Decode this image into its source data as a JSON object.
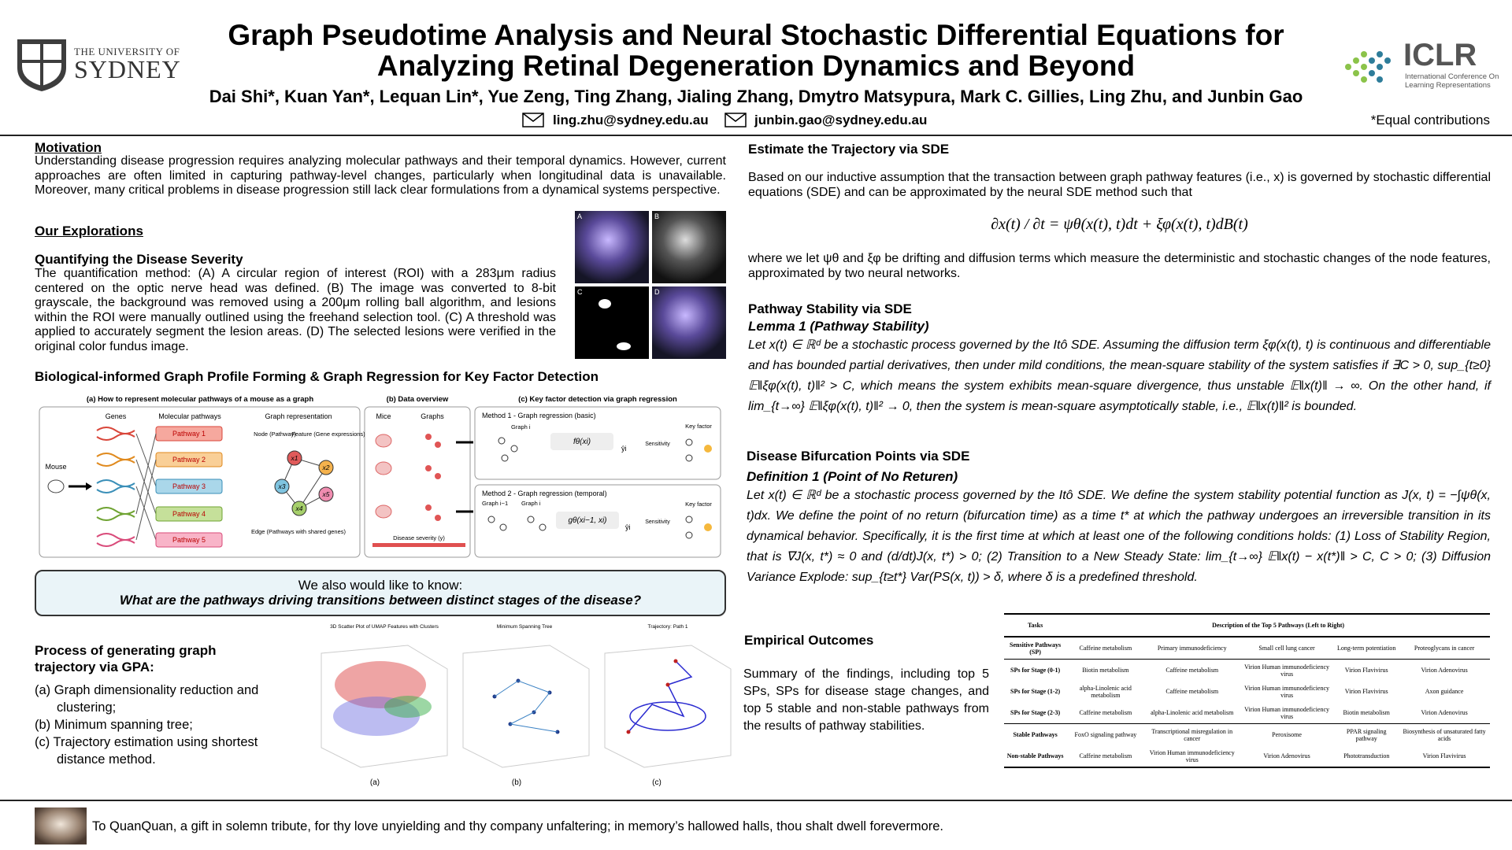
{
  "header": {
    "title_line1": "Graph Pseudotime Analysis and Neural Stochastic Differential Equations for",
    "title_line2": "Analyzing Retinal Degeneration Dynamics and Beyond",
    "authors": "Dai Shi*, Kuan Yan*, Lequan Lin*, Yue Zeng, Ting Zhang, Jialing Zhang, Dmytro Matsypura, Mark C. Gillies, Ling Zhu, and Junbin Gao",
    "emails": [
      "ling.zhu@sydney.edu.au",
      "junbin.gao@sydney.edu.au"
    ],
    "note": "*Equal contributions",
    "university_logo": [
      "THE UNIVERSITY OF",
      "SYDNEY"
    ],
    "conference_logo": {
      "name": "ICLR",
      "subtitle": [
        "International Conference On",
        "Learning Representations"
      ]
    }
  },
  "left": {
    "motivation_heading": "Motivation",
    "motivation_text": "Understanding disease progression requires analyzing molecular pathways and their temporal dynamics. However, current approaches are often limited in capturing pathway-level changes, particularly when longitudinal data is unavailable. Moreover, many critical problems in disease progression still lack clear formulations from a dynamical systems perspective.",
    "explorations_heading": "Our Explorations",
    "severity_heading": "Quantifying the Disease Severity",
    "severity_text": "The quantification method: (A) A circular region of interest (ROI) with a 283μm radius centered on the optic nerve head was defined. (B) The image was converted to 8-bit grayscale, the background was removed using a 200μm rolling ball algorithm, and lesions within the ROI were manually outlined using the freehand selection tool. (C) A threshold was applied to accurately segment the lesion areas. (D) The selected lesions were verified in the original color fundus image.",
    "fundus_labels": [
      "A",
      "B",
      "C",
      "D"
    ],
    "regression_heading": "Biological-informed Graph Profile Forming & Graph Regression for Key Factor Detection",
    "regression_figure": {
      "panel_a_title": "(a) How to represent molecular pathways of a mouse as a graph",
      "panel_b_title": "(b) Data overview",
      "panel_c_title": "(c) Key factor detection via graph regression",
      "genes": "Genes",
      "molecular_pathways": "Molecular pathways",
      "graph_representation": "Graph representation",
      "mouse": "Mouse",
      "pathways": [
        "Pathway 1",
        "Pathway 2",
        "Pathway 3",
        "Pathway 4",
        "Pathway 5"
      ],
      "node_label": "Node (Pathway)",
      "feature_label": "Feature (Gene expressions)",
      "edge_label": "Edge (Pathways with shared genes)",
      "nodes": [
        "x1",
        "x2",
        "x3",
        "x4",
        "x5"
      ],
      "mice": "Mice",
      "graphs": "Graphs",
      "disease_severity": "Disease severity (y)",
      "method1": "Method 1 - Graph regression (basic)",
      "method2": "Method 2 - Graph regression (temporal)",
      "graph_i": "Graph i",
      "graph_i_minus_1": "Graph i−1",
      "f_theta": "fθ(xi)",
      "g_theta": "gθ(xi−1, xi)",
      "y_hat": "ŷi",
      "sensitivity": "Sensitivity",
      "key_factor": "Key factor"
    },
    "question_line1": "We also would like to know:",
    "question_line2": "What are the pathways driving transitions between distinct stages of the disease?",
    "gpa_heading": "Process of generating graph trajectory via GPA:",
    "gpa_steps": [
      "(a) Graph dimensionality reduction and clustering;",
      "(b) Minimum spanning tree;",
      "(c) Trajectory estimation using shortest distance method."
    ],
    "gpa_figure": {
      "titles": [
        "3D Scatter Plot of UMAP Features with Clusters",
        "Minimum Spanning Tree",
        "Trajectory: Path 1"
      ],
      "captions": [
        "(a)",
        "(b)",
        "(c)"
      ]
    }
  },
  "right": {
    "sde_heading": "Estimate the Trajectory via SDE",
    "sde_text": "Based on our inductive assumption that the transaction between graph pathway features (i.e., x) is governed by stochastic differential equations (SDE) and can be approximated by the neural SDE method such that",
    "sde_equation": "∂x(t) / ∂t = ψθ(x(t), t)dt + ξφ(x(t), t)dB(t)",
    "sde_where": "where we let ψθ and ξφ be drifting and diffusion terms which measure the deterministic and stochastic changes of the node features, approximated by two neural networks.",
    "stability_heading": "Pathway Stability via SDE",
    "lemma_title": "Lemma 1 (Pathway Stability)",
    "lemma_text": "Let x(t) ∈ ℝᵈ be a stochastic process governed by the Itô SDE. Assuming the diffusion term ξφ(x(t), t) is continuous and differentiable and has bounded partial derivatives, then under mild conditions, the mean-square stability of the system satisfies if ∃C > 0, sup_{t≥0} 𝔼‖ξφ(x(t), t)‖² > C, which means the system exhibits mean-square divergence, thus unstable 𝔼‖x(t)‖ → ∞. On the other hand, if lim_{t→∞} 𝔼‖ξφ(x(t), t)‖² → 0, then the system is mean-square asymptotically stable, i.e., 𝔼‖x(t)‖² is bounded.",
    "bifurcation_heading": "Disease Bifurcation Points via SDE",
    "definition_title": "Definition 1 (Point of No Returen)",
    "definition_text": "Let x(t) ∈ ℝᵈ be a stochastic process governed by the Itô SDE. We define the system stability potential function as J(x, t) = −∫ψθ(x, t)dx. We define the point of no return (bifurcation time) as a time t* at which the pathway undergoes an irreversible transition in its dynamical behavior. Specifically, it is the first time at which at least one of the following conditions holds: (1) Loss of Stability Region, that is ∇J(x, t*) ≈ 0 and (d/dt)J(x, t*) > 0; (2) Transition to a New Steady State: lim_{t→∞} 𝔼‖x(t) − x(t*)‖ > C, C > 0; (3) Diffusion Variance Explode: sup_{t≥t*} Var(PS(x, t)) > δ, where δ is a predefined threshold.",
    "outcomes_heading": "Empirical Outcomes",
    "outcomes_text": "Summary of the findings, including top 5 SPs, SPs for disease stage changes, and top 5 stable and non-stable pathways from the results of pathway stabilities.",
    "table": {
      "header": [
        "Tasks",
        "Description of the Top 5 Pathways (Left to Right)"
      ],
      "rows": [
        [
          "Sensitive Pathways (SP)",
          "Caffeine metabolism",
          "Primary immunodeficiency",
          "Small cell lung cancer",
          "Long-term potentiation",
          "Proteoglycans in cancer"
        ],
        [
          "SPs for Stage (0-1)",
          "Biotin metabolism",
          "Caffeine metabolism",
          "Virion Human immunodeficiency virus",
          "Virion Flavivirus",
          "Virion Adenovirus"
        ],
        [
          "SPs for Stage (1-2)",
          "alpha-Linolenic acid metabolism",
          "Caffeine metabolism",
          "Virion Human immunodeficiency virus",
          "Virion Flavivirus",
          "Axon guidance"
        ],
        [
          "SPs for Stage (2-3)",
          "Caffeine metabolism",
          "alpha-Linolenic acid metabolism",
          "Virion Human immunodeficiency virus",
          "Biotin metabolism",
          "Virion Adenovirus"
        ],
        [
          "Stable Pathways",
          "FoxO signaling pathway",
          "Transcriptional misregulation in cancer",
          "Peroxisome",
          "PPAR signaling pathway",
          "Biosynthesis of unsaturated fatty acids"
        ],
        [
          "Non-stable Pathways",
          "Caffeine metabolism",
          "Virion Human immunodeficiency virus",
          "Virion Adenovirus",
          "Phototransduction",
          "Virion Flavivirus"
        ]
      ]
    }
  },
  "footer": {
    "dedication": "To QuanQuan, a gift in solemn tribute, for thy love unyielding and thy company unfaltering; in memory’s hallowed halls, thou shalt dwell forevermore."
  }
}
